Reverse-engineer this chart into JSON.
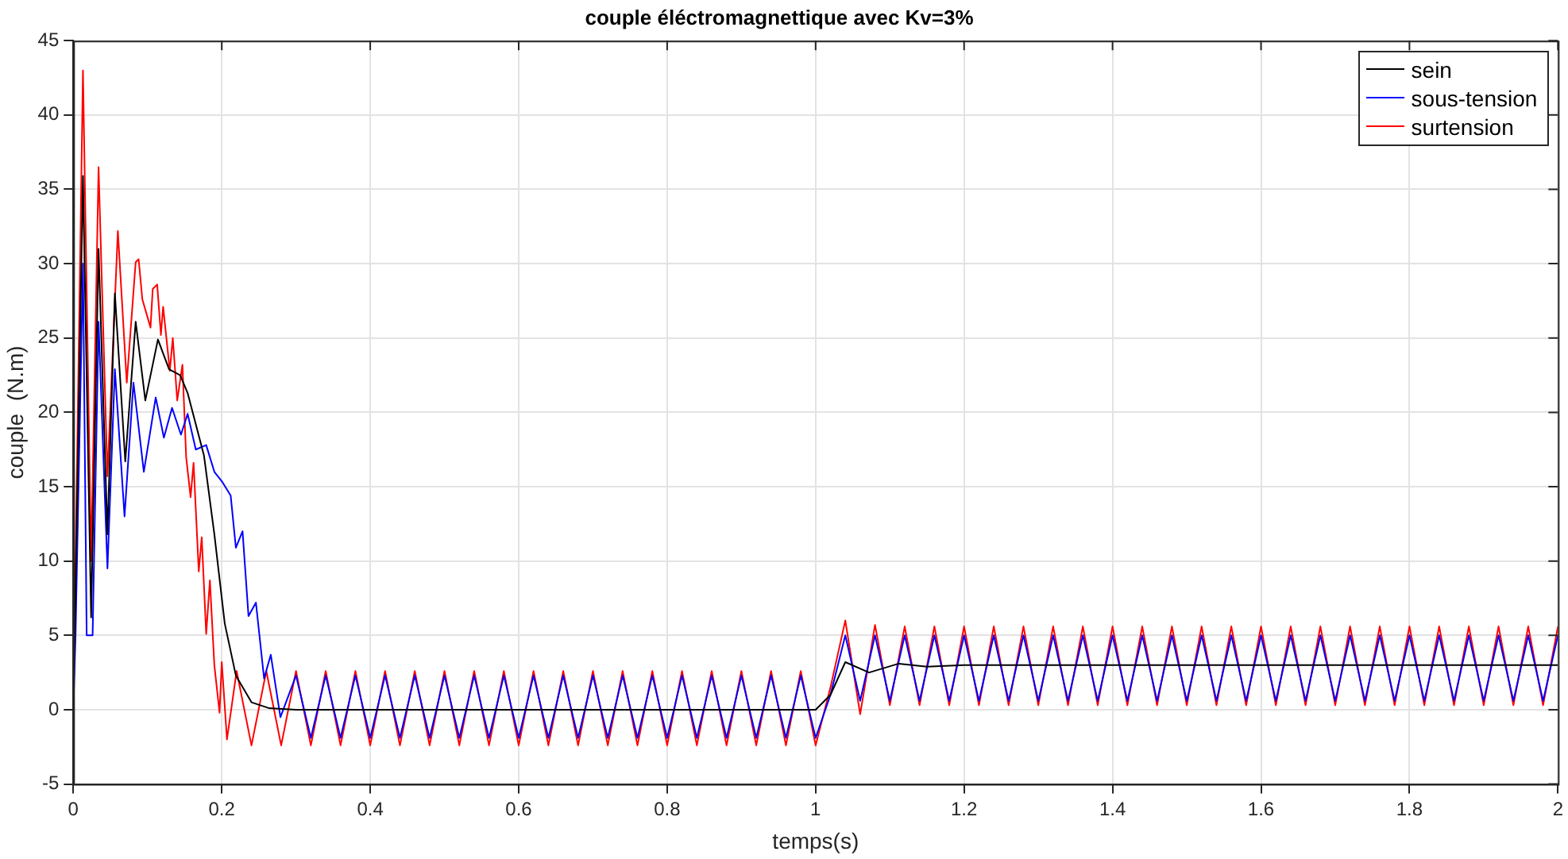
{
  "chart_data": {
    "type": "line",
    "title": "couple éléctromagnettique avec Kv=3%",
    "xlabel": "temps(s)",
    "ylabel": "couple  (N.m)",
    "xlim": [
      0,
      2
    ],
    "xticks": [
      0,
      0.2,
      0.4,
      0.6,
      0.8,
      1,
      1.2,
      1.4,
      1.6,
      1.8,
      2
    ],
    "ylim": [
      -5,
      45
    ],
    "yticks": [
      -5,
      0,
      5,
      10,
      15,
      20,
      25,
      30,
      35,
      40,
      45
    ],
    "grid": true,
    "legend": "top right",
    "series": [
      {
        "name": "sein",
        "color": "#000000",
        "x": [
          0,
          0.013,
          0.024,
          0.034,
          0.046,
          0.056,
          0.07,
          0.084,
          0.097,
          0.114,
          0.129,
          0.144,
          0.154,
          0.176,
          0.19,
          0.204,
          0.219,
          0.24,
          0.264,
          0.3,
          1.0,
          1.02,
          1.04,
          1.072,
          1.112,
          1.15,
          1.2,
          2.0
        ],
        "values": [
          0,
          35.9,
          6.2,
          31.0,
          11.8,
          28.0,
          16.7,
          26.1,
          20.8,
          24.9,
          22.9,
          22.5,
          21.3,
          17.1,
          11.8,
          5.8,
          2.3,
          0.5,
          0.1,
          0,
          0,
          1.0,
          3.2,
          2.5,
          3.1,
          2.9,
          3.0,
          3.0
        ]
      },
      {
        "name": "sous-tension",
        "color": "#0000ff",
        "x": [
          0,
          0.003,
          0.013,
          0.018,
          0.026,
          0.034,
          0.046,
          0.056,
          0.069,
          0.081,
          0.095,
          0.111,
          0.122,
          0.133,
          0.145,
          0.154,
          0.165,
          0.179,
          0.19,
          0.201,
          0.212,
          0.219,
          0.228,
          0.236,
          0.246,
          0.257,
          0.266,
          0.279,
          0.3,
          0.32,
          0.34,
          0.36,
          0.38,
          0.4,
          0.42,
          0.44,
          0.46,
          0.48,
          0.5,
          0.52,
          0.54,
          0.56,
          0.58,
          0.6,
          0.62,
          0.64,
          0.66,
          0.68,
          0.7,
          0.72,
          0.74,
          0.76,
          0.78,
          0.8,
          0.82,
          0.84,
          0.86,
          0.88,
          0.9,
          0.92,
          0.94,
          0.96,
          0.98,
          1.0,
          1.02,
          1.04,
          1.06,
          1.08,
          1.1,
          1.12,
          1.14,
          1.16,
          1.18,
          1.2,
          1.22,
          1.24,
          1.26,
          1.28,
          1.3,
          1.32,
          1.34,
          1.36,
          1.38,
          1.4,
          1.42,
          1.44,
          1.46,
          1.48,
          1.5,
          1.52,
          1.54,
          1.56,
          1.58,
          1.6,
          1.62,
          1.64,
          1.66,
          1.68,
          1.7,
          1.72,
          1.74,
          1.76,
          1.78,
          1.8,
          1.82,
          1.84,
          1.86,
          1.88,
          1.9,
          1.92,
          1.94,
          1.96,
          1.98,
          2.0
        ],
        "values": [
          0,
          5,
          30,
          5,
          5,
          26.1,
          9.5,
          22.9,
          13.0,
          22.0,
          16.0,
          21.0,
          18.3,
          20.3,
          18.5,
          19.9,
          17.5,
          17.8,
          16.0,
          15.3,
          14.4,
          10.9,
          12.0,
          6.3,
          7.2,
          2.1,
          3.7,
          -0.5,
          2.3,
          -1.9,
          2.3,
          -1.9,
          2.3,
          -1.9,
          2.3,
          -1.9,
          2.3,
          -1.9,
          2.3,
          -1.9,
          2.3,
          -1.9,
          2.3,
          -1.9,
          2.3,
          -1.9,
          2.3,
          -1.9,
          2.3,
          -1.9,
          2.3,
          -1.9,
          2.3,
          -1.9,
          2.3,
          -1.9,
          2.3,
          -1.9,
          2.3,
          -1.9,
          2.3,
          -1.9,
          2.3,
          -1.9,
          1.0,
          5.0,
          0.6,
          5.0,
          0.6,
          5.0,
          0.6,
          5.0,
          0.6,
          5.0,
          0.6,
          5.0,
          0.6,
          5.0,
          0.6,
          5.0,
          0.6,
          5.0,
          0.6,
          5.0,
          0.6,
          5.0,
          0.6,
          5.0,
          0.6,
          5.0,
          0.6,
          5.0,
          0.6,
          5.0,
          0.6,
          5.0,
          0.6,
          5.0,
          0.6,
          5.0,
          0.6,
          5.0,
          0.6,
          5.0,
          0.6,
          5.0,
          0.6,
          5.0,
          0.6,
          5.0,
          0.6,
          5.0,
          0.6,
          5.0
        ]
      },
      {
        "name": "surtension",
        "color": "#ff0000",
        "x": [
          0,
          0.013,
          0.024,
          0.034,
          0.046,
          0.06,
          0.072,
          0.084,
          0.088,
          0.093,
          0.104,
          0.107,
          0.113,
          0.118,
          0.121,
          0.13,
          0.134,
          0.14,
          0.147,
          0.152,
          0.158,
          0.162,
          0.169,
          0.173,
          0.179,
          0.184,
          0.19,
          0.197,
          0.2,
          0.207,
          0.22,
          0.24,
          0.26,
          0.28,
          0.3,
          0.32,
          0.34,
          0.36,
          0.38,
          0.4,
          0.42,
          0.44,
          0.46,
          0.48,
          0.5,
          0.52,
          0.54,
          0.56,
          0.58,
          0.6,
          0.62,
          0.64,
          0.66,
          0.68,
          0.7,
          0.72,
          0.74,
          0.76,
          0.78,
          0.8,
          0.82,
          0.84,
          0.86,
          0.88,
          0.9,
          0.92,
          0.94,
          0.96,
          0.98,
          1.0,
          1.02,
          1.04,
          1.06,
          1.08,
          1.1,
          1.12,
          1.14,
          1.16,
          1.18,
          1.2,
          1.22,
          1.24,
          1.26,
          1.28,
          1.3,
          1.32,
          1.34,
          1.36,
          1.38,
          1.4,
          1.42,
          1.44,
          1.46,
          1.48,
          1.5,
          1.52,
          1.54,
          1.56,
          1.58,
          1.6,
          1.62,
          1.64,
          1.66,
          1.68,
          1.7,
          1.72,
          1.74,
          1.76,
          1.78,
          1.8,
          1.82,
          1.84,
          1.86,
          1.88,
          1.9,
          1.92,
          1.94,
          1.96,
          1.98,
          2.0
        ],
        "values": [
          0,
          43,
          10,
          36.5,
          15.7,
          32.2,
          22.0,
          30.1,
          30.3,
          27.6,
          25.7,
          28.3,
          28.6,
          25.2,
          27.1,
          22.8,
          25.0,
          20.8,
          23.2,
          17.0,
          14.3,
          16.6,
          9.3,
          11.6,
          5.1,
          8.7,
          3.0,
          -0.2,
          3.2,
          -2.0,
          2.6,
          -2.4,
          2.6,
          -2.4,
          2.6,
          -2.4,
          2.6,
          -2.4,
          2.6,
          -2.4,
          2.6,
          -2.4,
          2.6,
          -2.4,
          2.6,
          -2.4,
          2.6,
          -2.4,
          2.6,
          -2.4,
          2.6,
          -2.4,
          2.6,
          -2.4,
          2.6,
          -2.4,
          2.6,
          -2.4,
          2.6,
          -2.4,
          2.6,
          -2.4,
          2.6,
          -2.4,
          2.6,
          -2.4,
          2.6,
          -2.4,
          2.6,
          -2.4,
          1.5,
          6.0,
          -0.3,
          5.7,
          0.3,
          5.6,
          0.3,
          5.6,
          0.3,
          5.6,
          0.3,
          5.6,
          0.3,
          5.6,
          0.3,
          5.6,
          0.3,
          5.6,
          0.3,
          5.6,
          0.3,
          5.6,
          0.3,
          5.6,
          0.3,
          5.6,
          0.3,
          5.6,
          0.3,
          5.6,
          0.3,
          5.6,
          0.3,
          5.6,
          0.3,
          5.6,
          0.3,
          5.6,
          0.3,
          5.6,
          0.3,
          5.6,
          0.3,
          5.6,
          0.3,
          5.6,
          0.3,
          5.6,
          0.3,
          5.6
        ]
      }
    ]
  }
}
